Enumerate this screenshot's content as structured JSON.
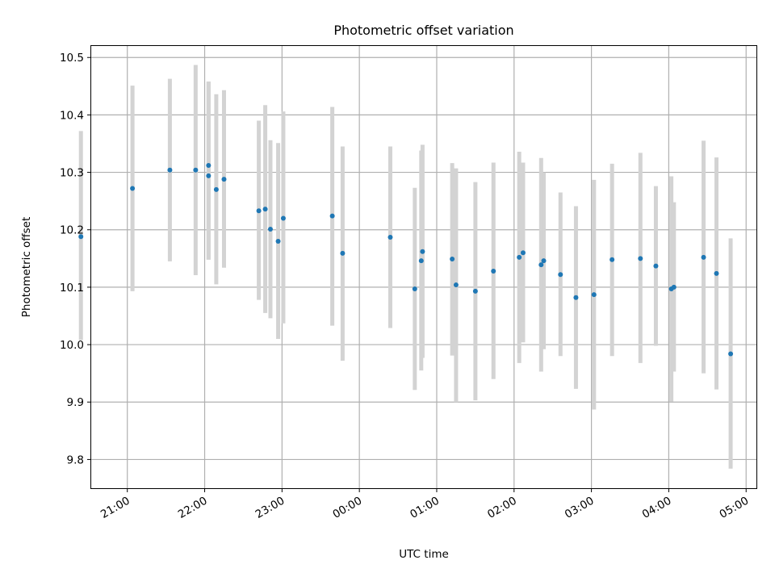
{
  "chart_data": {
    "type": "scatter",
    "title": "Photometric offset variation",
    "xlabel": "UTC time",
    "ylabel": "Photometric offset",
    "xlim": [
      "20:32",
      "05:08"
    ],
    "ylim": [
      9.75,
      10.52
    ],
    "grid": true,
    "x_tick_labels": [
      "21:00",
      "22:00",
      "23:00",
      "00:00",
      "01:00",
      "02:00",
      "03:00",
      "04:00",
      "05:00"
    ],
    "y_ticks": [
      9.8,
      9.9,
      10.0,
      10.1,
      10.2,
      10.3,
      10.4,
      10.5
    ],
    "y_tick_labels": [
      "9.8",
      "9.9",
      "10.0",
      "10.1",
      "10.2",
      "10.3",
      "10.4",
      "10.5"
    ],
    "colors": {
      "point": "#1f77b4",
      "errorbar": "#d3d3d3",
      "grid": "#b0b0b0"
    },
    "points": [
      {
        "t": "20:24",
        "y": 10.188,
        "lo": 10.008,
        "hi": 10.372
      },
      {
        "t": "21:04",
        "y": 10.272,
        "lo": 10.093,
        "hi": 10.451
      },
      {
        "t": "21:33",
        "y": 10.304,
        "lo": 10.145,
        "hi": 10.463
      },
      {
        "t": "21:53",
        "y": 10.304,
        "lo": 10.121,
        "hi": 10.487
      },
      {
        "t": "22:03",
        "y": 10.294,
        "lo": 10.148,
        "hi": 10.458
      },
      {
        "t": "22:03",
        "y": 10.312,
        "lo": 10.148,
        "hi": 10.458
      },
      {
        "t": "22:09",
        "y": 10.27,
        "lo": 10.105,
        "hi": 10.436
      },
      {
        "t": "22:15",
        "y": 10.288,
        "lo": 10.134,
        "hi": 10.443
      },
      {
        "t": "22:42",
        "y": 10.233,
        "lo": 10.078,
        "hi": 10.39
      },
      {
        "t": "22:47",
        "y": 10.236,
        "lo": 10.055,
        "hi": 10.417
      },
      {
        "t": "22:51",
        "y": 10.201,
        "lo": 10.046,
        "hi": 10.356
      },
      {
        "t": "22:57",
        "y": 10.18,
        "lo": 10.01,
        "hi": 10.351
      },
      {
        "t": "23:01",
        "y": 10.22,
        "lo": 10.037,
        "hi": 10.406
      },
      {
        "t": "23:39",
        "y": 10.224,
        "lo": 10.033,
        "hi": 10.414
      },
      {
        "t": "23:47",
        "y": 10.159,
        "lo": 9.972,
        "hi": 10.345
      },
      {
        "t": "00:24",
        "y": 10.187,
        "lo": 10.029,
        "hi": 10.345
      },
      {
        "t": "00:43",
        "y": 10.097,
        "lo": 9.921,
        "hi": 10.273
      },
      {
        "t": "00:48",
        "y": 10.146,
        "lo": 9.955,
        "hi": 10.338
      },
      {
        "t": "00:49",
        "y": 10.162,
        "lo": 9.977,
        "hi": 10.348
      },
      {
        "t": "01:12",
        "y": 10.149,
        "lo": 9.981,
        "hi": 10.316
      },
      {
        "t": "01:15",
        "y": 10.104,
        "lo": 9.9,
        "hi": 10.307
      },
      {
        "t": "01:30",
        "y": 10.093,
        "lo": 9.903,
        "hi": 10.283
      },
      {
        "t": "01:44",
        "y": 10.128,
        "lo": 9.94,
        "hi": 10.317
      },
      {
        "t": "02:04",
        "y": 10.152,
        "lo": 9.968,
        "hi": 10.336
      },
      {
        "t": "02:07",
        "y": 10.16,
        "lo": 10.004,
        "hi": 10.317
      },
      {
        "t": "02:21",
        "y": 10.139,
        "lo": 9.953,
        "hi": 10.325
      },
      {
        "t": "02:23",
        "y": 10.146,
        "lo": 9.992,
        "hi": 10.3
      },
      {
        "t": "02:36",
        "y": 10.122,
        "lo": 9.98,
        "hi": 10.265
      },
      {
        "t": "02:48",
        "y": 10.082,
        "lo": 9.923,
        "hi": 10.241
      },
      {
        "t": "03:02",
        "y": 10.087,
        "lo": 9.887,
        "hi": 10.287
      },
      {
        "t": "03:16",
        "y": 10.148,
        "lo": 9.98,
        "hi": 10.315
      },
      {
        "t": "03:38",
        "y": 10.15,
        "lo": 9.968,
        "hi": 10.334
      },
      {
        "t": "03:50",
        "y": 10.137,
        "lo": 9.998,
        "hi": 10.276
      },
      {
        "t": "04:02",
        "y": 10.097,
        "lo": 9.901,
        "hi": 10.293
      },
      {
        "t": "04:04",
        "y": 10.1,
        "lo": 9.953,
        "hi": 10.248
      },
      {
        "t": "04:27",
        "y": 10.152,
        "lo": 9.95,
        "hi": 10.355
      },
      {
        "t": "04:37",
        "y": 10.124,
        "lo": 9.922,
        "hi": 10.326
      },
      {
        "t": "04:48",
        "y": 9.984,
        "lo": 9.784,
        "hi": 10.185
      }
    ]
  }
}
